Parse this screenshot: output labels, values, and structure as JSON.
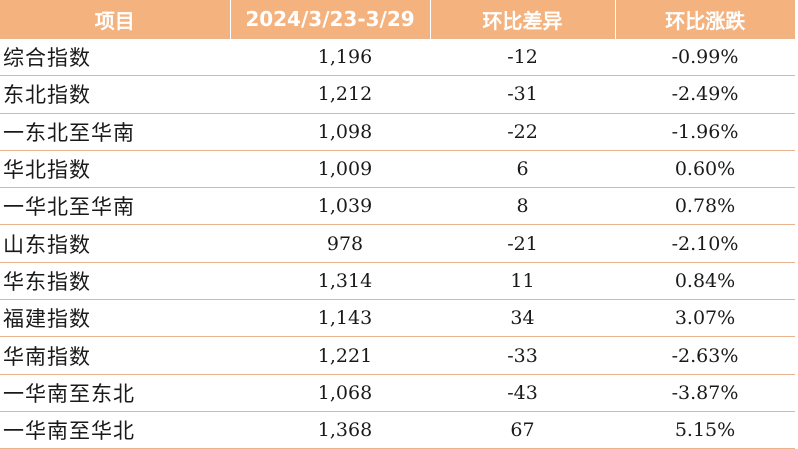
{
  "table": {
    "headers": [
      "项目",
      "2024/3/23-3/29",
      "环比差异",
      "环比涨跌"
    ],
    "rows": [
      {
        "name": "综合指数",
        "value": "1,196",
        "diff": "-12",
        "pct": "-0.99%"
      },
      {
        "name": "东北指数",
        "value": "1,212",
        "diff": "-31",
        "pct": "-2.49%"
      },
      {
        "name": "一东北至华南",
        "value": "1,098",
        "diff": "-22",
        "pct": "-1.96%"
      },
      {
        "name": "华北指数",
        "value": "1,009",
        "diff": "6",
        "pct": "0.60%"
      },
      {
        "name": "一华北至华南",
        "value": "1,039",
        "diff": "8",
        "pct": "0.78%"
      },
      {
        "name": "山东指数",
        "value": "978",
        "diff": "-21",
        "pct": "-2.10%"
      },
      {
        "name": "华东指数",
        "value": "1,314",
        "diff": "11",
        "pct": "0.84%"
      },
      {
        "name": "福建指数",
        "value": "1,143",
        "diff": "34",
        "pct": "3.07%"
      },
      {
        "name": "华南指数",
        "value": "1,221",
        "diff": "-33",
        "pct": "-2.63%"
      },
      {
        "name": "一华南至东北",
        "value": "1,068",
        "diff": "-43",
        "pct": "-3.87%"
      },
      {
        "name": "一华南至华北",
        "value": "1,368",
        "diff": "67",
        "pct": "5.15%"
      }
    ]
  }
}
